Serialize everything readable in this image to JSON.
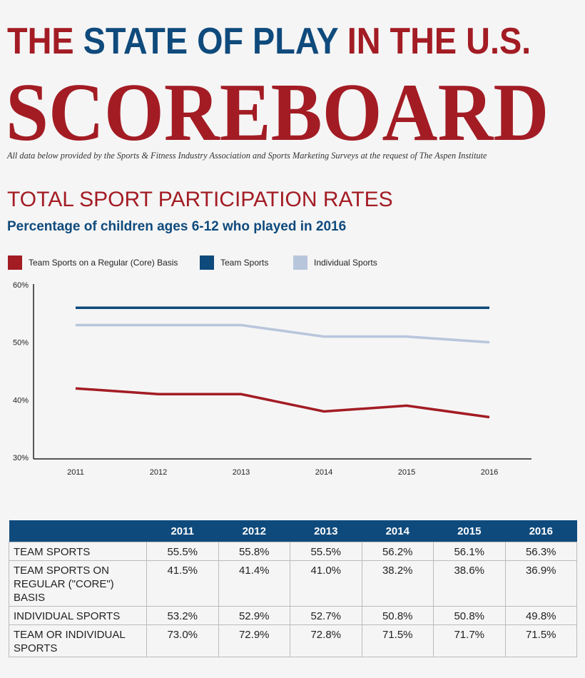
{
  "header": {
    "title_parts": [
      "THE",
      "STATE OF PLAY",
      "IN THE U.S."
    ],
    "scoreboard": "SCOREBOARD",
    "credit": "All data below provided by the Sports & Fitness Industry Association and Sports Marketing Surveys at the request of The Aspen Institute"
  },
  "section": {
    "title": "TOTAL SPORT PARTICIPATION RATES",
    "subtitle": "Percentage of children ages 6-12 who played in 2016"
  },
  "colors": {
    "red": "#a31c24",
    "blue": "#0f4a7c",
    "light_blue": "#b8c6dc"
  },
  "chart_data": {
    "type": "line",
    "x": [
      "2011",
      "2012",
      "2013",
      "2014",
      "2015",
      "2016"
    ],
    "ylim": [
      30,
      60
    ],
    "yticks": [
      "30%",
      "40%",
      "50%",
      "60%"
    ],
    "legend_position": "top-left",
    "grid": false,
    "series": [
      {
        "name": "Team Sports on a Regular (Core) Basis",
        "color": "#a31c24",
        "values": [
          42,
          41,
          41,
          38,
          39,
          37
        ]
      },
      {
        "name": "Team Sports",
        "color": "#0f4a7c",
        "values": [
          56,
          56,
          56,
          56,
          56,
          56
        ]
      },
      {
        "name": "Individual Sports",
        "color": "#b8c6dc",
        "values": [
          53,
          53,
          53,
          51,
          51,
          50
        ]
      }
    ]
  },
  "table": {
    "columns": [
      "",
      "2011",
      "2012",
      "2013",
      "2014",
      "2015",
      "2016"
    ],
    "rows": [
      {
        "label": "TEAM SPORTS",
        "values": [
          "55.5%",
          "55.8%",
          "55.5%",
          "56.2%",
          "56.1%",
          "56.3%"
        ]
      },
      {
        "label": "TEAM SPORTS ON REGULAR (\"CORE\") BASIS",
        "values": [
          "41.5%",
          "41.4%",
          "41.0%",
          "38.2%",
          "38.6%",
          "36.9%"
        ]
      },
      {
        "label": "INDIVIDUAL SPORTS",
        "values": [
          "53.2%",
          "52.9%",
          "52.7%",
          "50.8%",
          "50.8%",
          "49.8%"
        ]
      },
      {
        "label": "TEAM OR  INDIVIDUAL SPORTS",
        "values": [
          "73.0%",
          "72.9%",
          "72.8%",
          "71.5%",
          "71.7%",
          "71.5%"
        ]
      }
    ]
  }
}
